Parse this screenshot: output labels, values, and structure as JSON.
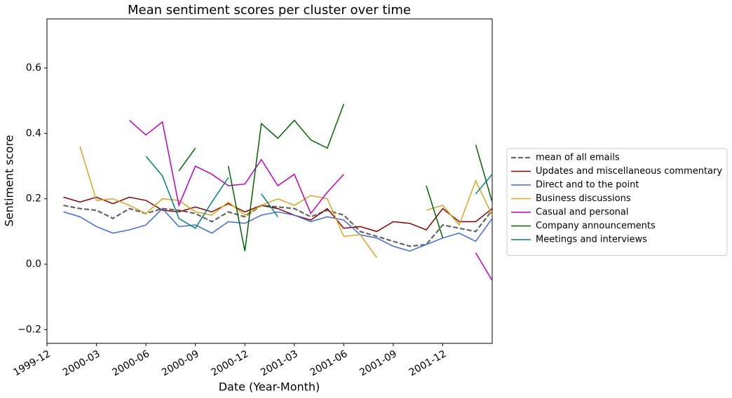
{
  "chart_data": {
    "type": "line",
    "title": "Mean sentiment scores per cluster over time",
    "xlabel": "Date (Year-Month)",
    "ylabel": "Sentiment score",
    "x": [
      "2000-01",
      "2000-02",
      "2000-03",
      "2000-04",
      "2000-05",
      "2000-06",
      "2000-07",
      "2000-08",
      "2000-09",
      "2000-10",
      "2000-11",
      "2000-12",
      "2001-01",
      "2001-02",
      "2001-03",
      "2001-04",
      "2001-05",
      "2001-06",
      "2001-07",
      "2001-08",
      "2001-09",
      "2001-10",
      "2001-11",
      "2001-12",
      "2002-01",
      "2002-02",
      "2002-03"
    ],
    "xlim": [
      "1999-12",
      "2002-03"
    ],
    "xticks": [
      "1999-12",
      "2000-03",
      "2000-06",
      "2000-09",
      "2000-12",
      "2001-03",
      "2001-06",
      "2001-09",
      "2001-12"
    ],
    "ylim": [
      -0.242,
      0.75
    ],
    "yticks": [
      {
        "value": -0.2,
        "label": "−0.2"
      },
      {
        "value": 0,
        "label": "0.0"
      },
      {
        "value": 0.2,
        "label": "0.2"
      },
      {
        "value": 0.4,
        "label": "0.4"
      },
      {
        "value": 0.6,
        "label": "0.6"
      }
    ],
    "legend": "right",
    "series": [
      {
        "name": "mean of all emails",
        "color": "#666666",
        "dashed": true,
        "values": [
          0.18,
          0.17,
          0.165,
          0.14,
          0.17,
          0.155,
          0.17,
          0.165,
          0.155,
          0.13,
          0.16,
          0.145,
          0.18,
          0.175,
          0.17,
          0.145,
          0.165,
          0.15,
          0.1,
          0.085,
          0.07,
          0.055,
          0.06,
          0.12,
          0.11,
          0.1,
          0.165
        ]
      },
      {
        "name": "Updates and miscellaneous commentary",
        "color": "#8b0000",
        "values": [
          0.205,
          0.19,
          0.205,
          0.185,
          0.205,
          0.195,
          0.165,
          0.16,
          0.175,
          0.16,
          0.185,
          0.16,
          0.18,
          0.17,
          0.15,
          0.135,
          0.17,
          0.11,
          0.115,
          0.1,
          0.13,
          0.125,
          0.105,
          0.17,
          0.13,
          0.13,
          0.17
        ]
      },
      {
        "name": "Direct and to the point",
        "color": "#4169e1",
        "values": [
          0.16,
          0.145,
          0.115,
          0.095,
          0.105,
          0.12,
          0.17,
          0.115,
          0.12,
          0.095,
          0.13,
          0.125,
          0.15,
          0.16,
          0.15,
          0.13,
          0.145,
          0.135,
          0.09,
          0.08,
          0.055,
          0.04,
          0.06,
          0.08,
          0.095,
          0.07,
          0.14
        ]
      },
      {
        "name": "Business discussions",
        "color": "#daa520",
        "values": [
          null,
          0.36,
          0.195,
          0.2,
          0.18,
          0.155,
          0.2,
          0.195,
          0.16,
          0.15,
          0.19,
          0.15,
          0.18,
          0.2,
          0.18,
          0.21,
          0.2,
          0.085,
          0.09,
          0.02,
          null,
          null,
          0.165,
          0.18,
          0.12,
          0.255,
          0.15
        ]
      },
      {
        "name": "Casual and personal",
        "color": "#c000c0",
        "values": [
          null,
          null,
          null,
          null,
          0.44,
          0.395,
          0.435,
          0.18,
          0.3,
          0.275,
          0.24,
          0.245,
          0.32,
          0.24,
          0.275,
          0.155,
          0.22,
          0.275,
          null,
          null,
          null,
          null,
          null,
          null,
          null,
          0.035,
          -0.05
        ]
      },
      {
        "name": "Company announcements",
        "color": "#006400",
        "values": [
          null,
          null,
          null,
          null,
          null,
          null,
          null,
          0.285,
          0.355,
          null,
          0.3,
          0.04,
          0.43,
          0.385,
          0.44,
          0.38,
          0.355,
          0.49,
          null,
          null,
          null,
          null,
          0.24,
          0.08,
          null,
          0.365,
          0.19
        ]
      },
      {
        "name": "Meetings and interviews",
        "color": "#008080",
        "values": [
          null,
          null,
          null,
          null,
          null,
          0.33,
          0.27,
          0.14,
          0.11,
          0.19,
          0.265,
          null,
          0.215,
          0.145,
          null,
          null,
          null,
          null,
          null,
          null,
          null,
          null,
          null,
          null,
          null,
          0.215,
          0.275
        ]
      }
    ]
  }
}
